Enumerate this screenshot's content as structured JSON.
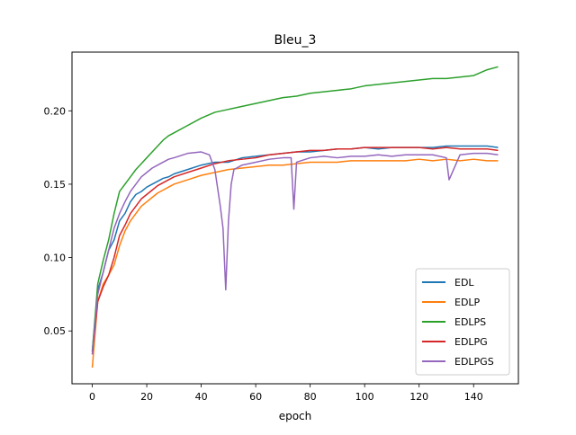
{
  "chart_data": {
    "type": "line",
    "title": "Bleu_3",
    "xlabel": "epoch",
    "ylabel": "",
    "xlim": [
      -7.45,
      156.45
    ],
    "ylim": [
      0.014,
      0.24
    ],
    "xticks": [
      0,
      20,
      40,
      60,
      80,
      100,
      120,
      140
    ],
    "yticks": [
      0.05,
      0.1,
      0.15,
      0.2
    ],
    "ytick_labels": [
      "0.05",
      "0.10",
      "0.15",
      "0.20"
    ],
    "grid": false,
    "legend_position": "lower-right",
    "series": [
      {
        "name": "EDL",
        "color": "#1f77b4",
        "x": [
          0,
          2,
          4,
          6,
          8,
          10,
          12,
          14,
          16,
          18,
          20,
          22,
          24,
          26,
          28,
          30,
          35,
          40,
          45,
          50,
          55,
          60,
          65,
          70,
          75,
          80,
          85,
          90,
          95,
          100,
          105,
          110,
          115,
          120,
          125,
          130,
          135,
          140,
          145,
          149
        ],
        "y": [
          0.036,
          0.078,
          0.09,
          0.105,
          0.112,
          0.125,
          0.13,
          0.138,
          0.143,
          0.145,
          0.148,
          0.15,
          0.152,
          0.154,
          0.155,
          0.157,
          0.16,
          0.163,
          0.165,
          0.165,
          0.168,
          0.169,
          0.17,
          0.171,
          0.172,
          0.172,
          0.173,
          0.174,
          0.174,
          0.175,
          0.174,
          0.175,
          0.175,
          0.175,
          0.175,
          0.176,
          0.176,
          0.176,
          0.176,
          0.175
        ]
      },
      {
        "name": "EDLP",
        "color": "#ff7f0e",
        "x": [
          0,
          2,
          4,
          6,
          8,
          10,
          12,
          14,
          16,
          18,
          20,
          22,
          24,
          26,
          28,
          30,
          35,
          40,
          45,
          50,
          55,
          60,
          65,
          70,
          75,
          80,
          85,
          90,
          95,
          100,
          105,
          110,
          115,
          120,
          125,
          130,
          135,
          140,
          145,
          149
        ],
        "y": [
          0.025,
          0.07,
          0.082,
          0.088,
          0.095,
          0.108,
          0.118,
          0.125,
          0.13,
          0.135,
          0.138,
          0.141,
          0.144,
          0.146,
          0.148,
          0.15,
          0.153,
          0.156,
          0.158,
          0.16,
          0.161,
          0.162,
          0.163,
          0.163,
          0.164,
          0.165,
          0.165,
          0.165,
          0.166,
          0.166,
          0.166,
          0.166,
          0.166,
          0.167,
          0.166,
          0.167,
          0.166,
          0.167,
          0.166,
          0.166
        ]
      },
      {
        "name": "EDLPS",
        "color": "#2ca02c",
        "x": [
          0,
          2,
          4,
          6,
          8,
          10,
          12,
          14,
          16,
          18,
          20,
          22,
          24,
          26,
          28,
          30,
          35,
          40,
          45,
          50,
          55,
          60,
          65,
          70,
          75,
          80,
          85,
          90,
          95,
          100,
          105,
          110,
          115,
          120,
          125,
          130,
          135,
          140,
          145,
          149
        ],
        "y": [
          0.036,
          0.082,
          0.098,
          0.112,
          0.13,
          0.145,
          0.15,
          0.155,
          0.16,
          0.164,
          0.168,
          0.172,
          0.176,
          0.18,
          0.183,
          0.185,
          0.19,
          0.195,
          0.199,
          0.201,
          0.203,
          0.205,
          0.207,
          0.209,
          0.21,
          0.212,
          0.213,
          0.214,
          0.215,
          0.217,
          0.218,
          0.219,
          0.22,
          0.221,
          0.222,
          0.222,
          0.223,
          0.224,
          0.228,
          0.23
        ]
      },
      {
        "name": "EDLPG",
        "color": "#d62728",
        "x": [
          0,
          2,
          4,
          6,
          8,
          10,
          12,
          14,
          16,
          18,
          20,
          22,
          24,
          26,
          28,
          30,
          35,
          40,
          45,
          50,
          55,
          60,
          65,
          70,
          75,
          80,
          85,
          90,
          95,
          100,
          105,
          110,
          115,
          120,
          125,
          130,
          135,
          140,
          145,
          149
        ],
        "y": [
          0.034,
          0.07,
          0.08,
          0.088,
          0.1,
          0.115,
          0.122,
          0.13,
          0.135,
          0.14,
          0.143,
          0.146,
          0.149,
          0.151,
          0.153,
          0.155,
          0.158,
          0.161,
          0.164,
          0.166,
          0.167,
          0.168,
          0.17,
          0.171,
          0.172,
          0.173,
          0.173,
          0.174,
          0.174,
          0.175,
          0.175,
          0.175,
          0.175,
          0.175,
          0.174,
          0.175,
          0.174,
          0.174,
          0.174,
          0.173
        ]
      },
      {
        "name": "EDLPGS",
        "color": "#9467bd",
        "x": [
          0,
          2,
          4,
          6,
          8,
          10,
          12,
          14,
          16,
          18,
          20,
          22,
          24,
          26,
          28,
          30,
          35,
          40,
          43,
          45,
          47,
          48,
          49,
          50,
          51,
          52,
          55,
          60,
          65,
          70,
          73,
          74,
          75,
          80,
          85,
          90,
          95,
          100,
          105,
          110,
          115,
          120,
          125,
          130,
          131,
          135,
          140,
          145,
          149
        ],
        "y": [
          0.034,
          0.075,
          0.09,
          0.105,
          0.12,
          0.13,
          0.138,
          0.145,
          0.15,
          0.155,
          0.158,
          0.161,
          0.163,
          0.165,
          0.167,
          0.168,
          0.171,
          0.172,
          0.17,
          0.16,
          0.135,
          0.12,
          0.078,
          0.125,
          0.15,
          0.16,
          0.163,
          0.165,
          0.167,
          0.168,
          0.168,
          0.133,
          0.165,
          0.168,
          0.169,
          0.168,
          0.169,
          0.169,
          0.17,
          0.169,
          0.17,
          0.17,
          0.17,
          0.168,
          0.153,
          0.17,
          0.171,
          0.171,
          0.17
        ]
      }
    ]
  }
}
